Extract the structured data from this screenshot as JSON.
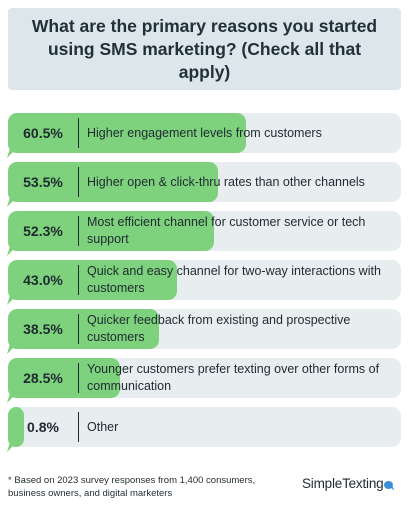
{
  "title": "What are the primary reasons you started using SMS marketing? (Check all that apply)",
  "chart_data": {
    "type": "bar",
    "orientation": "horizontal",
    "categories": [
      "Higher engagement levels from customers",
      "Higher open & click-thru rates than other channels",
      "Most efficient channel for customer service or tech support",
      "Quick and easy channel for two-way interactions with customers",
      "Quicker feedback from existing and prospective customers",
      "Younger customers prefer texting over other forms of communication",
      "Other"
    ],
    "values": [
      60.5,
      53.5,
      52.3,
      43.0,
      38.5,
      28.5,
      0.8
    ],
    "value_labels": [
      "60.5%",
      "53.5%",
      "52.3%",
      "43.0%",
      "38.5%",
      "28.5%",
      "0.8%"
    ],
    "xlim": [
      0,
      100
    ],
    "bar_color": "#7ed27d",
    "track_color": "#e8edf0"
  },
  "footnote": "* Based on 2023 survey responses from 1,400 consumers, business owners, and digital marketers",
  "logo": {
    "text": "SimpleTexting",
    "accent_color": "#3d8ed9"
  }
}
